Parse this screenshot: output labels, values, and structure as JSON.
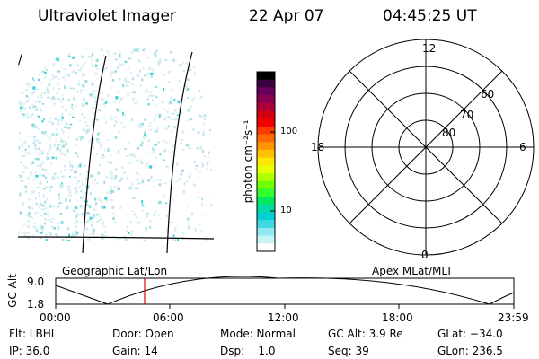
{
  "header": {
    "instrument": "Ultraviolet Imager",
    "date": "22 Apr 07",
    "time": "04:45:25 UT"
  },
  "left_panel": {
    "marker": "/",
    "footer_label": "Geographic Lat/Lon"
  },
  "colorbar": {
    "unit_label": "photon cm⁻²s⁻¹",
    "tick_labels": [
      "100",
      "10"
    ],
    "colors": [
      "#000000",
      "#3b0040",
      "#6a005c",
      "#8a0050",
      "#b0003a",
      "#d00010",
      "#f00000",
      "#ff3a00",
      "#ff6a00",
      "#ff9600",
      "#ffc000",
      "#ffe800",
      "#e8ff00",
      "#b0ff00",
      "#70ff00",
      "#30ff30",
      "#00e860",
      "#00d8a8",
      "#00d0d0",
      "#40d8e0",
      "#90e8f0",
      "#c8f4f8",
      "#ffffff"
    ]
  },
  "right_panel": {
    "mlt_labels": {
      "top": "12",
      "left": "18",
      "right": "6",
      "bottom": "0"
    },
    "lat_labels": [
      "60",
      "70",
      "80"
    ],
    "footer_label": "Apex MLat/MLT"
  },
  "timeline": {
    "ylabel": "GC Alt",
    "ytick_labels": [
      "9.0",
      "1.8"
    ],
    "xtick_labels": [
      "00:00",
      "06:00",
      "12:00",
      "18:00",
      "23:59"
    ],
    "marker_color": "#e00000"
  },
  "info": {
    "flt": "Flt: LBHL",
    "door": "Door: Open",
    "mode": "Mode: Normal",
    "gcalt": "GC Alt: 3.9 Re",
    "glat": "GLat: −34.0",
    "ip": "IP: 36.0",
    "gain": "Gain: 14",
    "dsp": "Dsp:    1.0",
    "seq": "Seq: 39",
    "glon": "GLon: 236.5"
  }
}
